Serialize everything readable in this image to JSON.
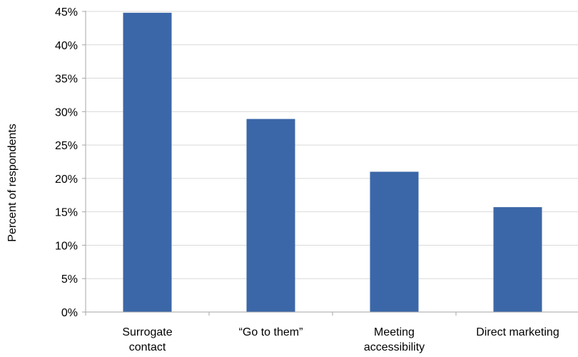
{
  "chart_data": {
    "type": "bar",
    "categories": [
      [
        "Surrogate",
        "contact"
      ],
      [
        "“Go to them”"
      ],
      [
        "Meeting",
        "accessibility"
      ],
      [
        "Direct marketing"
      ]
    ],
    "values": [
      44.8,
      28.9,
      21.0,
      15.7
    ],
    "ylabel": "Percent of respondents",
    "xlabel": "",
    "ylim": [
      0,
      45
    ],
    "yticks": [
      "0%",
      "5%",
      "10%",
      "15%",
      "20%",
      "25%",
      "30%",
      "35%",
      "40%",
      "45%"
    ],
    "grid": true,
    "legend": false,
    "colors": {
      "bar": "#3b67a8",
      "grid": "#d9d9d9",
      "axis": "#a6a6a6"
    }
  }
}
